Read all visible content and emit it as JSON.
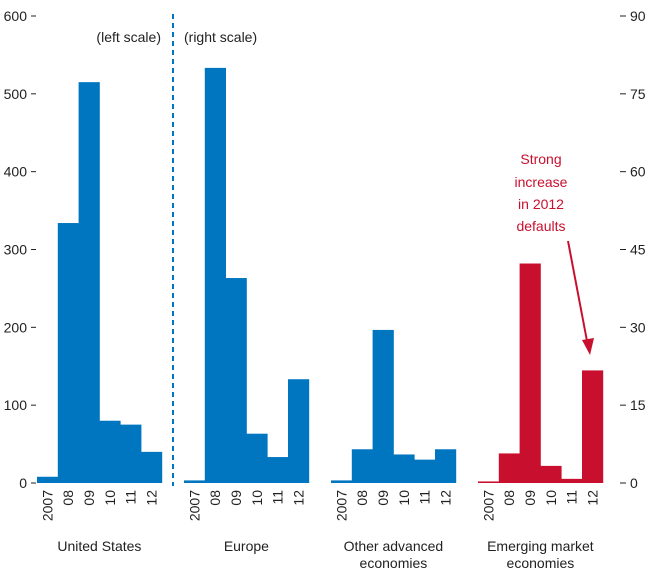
{
  "chart_data": {
    "type": "bar",
    "x": [
      "2007",
      "08",
      "09",
      "10",
      "11",
      "12"
    ],
    "left_axis": {
      "ylim": [
        0,
        600
      ],
      "ticks": [
        0,
        100,
        200,
        300,
        400,
        500,
        600
      ],
      "label": "(left scale)"
    },
    "right_axis": {
      "ylim": [
        0,
        90
      ],
      "ticks": [
        0,
        15,
        30,
        45,
        60,
        75,
        90
      ],
      "label": "(right scale)"
    },
    "groups": [
      {
        "name": "United States",
        "axis": "left",
        "values": [
          8,
          334,
          515,
          80,
          75,
          40
        ]
      },
      {
        "name": "Europe",
        "axis": "right",
        "values": [
          0.5,
          80,
          39.5,
          9.5,
          5,
          20
        ]
      },
      {
        "name": "Other advanced economies",
        "axis": "right",
        "values": [
          0.5,
          6.5,
          29.5,
          5.5,
          4.5,
          6.5
        ]
      },
      {
        "name": "Emerging market economies",
        "axis": "right",
        "values": [
          0.3,
          5.7,
          42.3,
          3.3,
          0.8,
          21.7
        ]
      }
    ],
    "colors": {
      "blue": "#0075c0",
      "red": "#c8102e",
      "axis": "#222222"
    },
    "annotation": {
      "text": [
        "Strong",
        "increase",
        "in 2012",
        "defaults"
      ]
    }
  }
}
